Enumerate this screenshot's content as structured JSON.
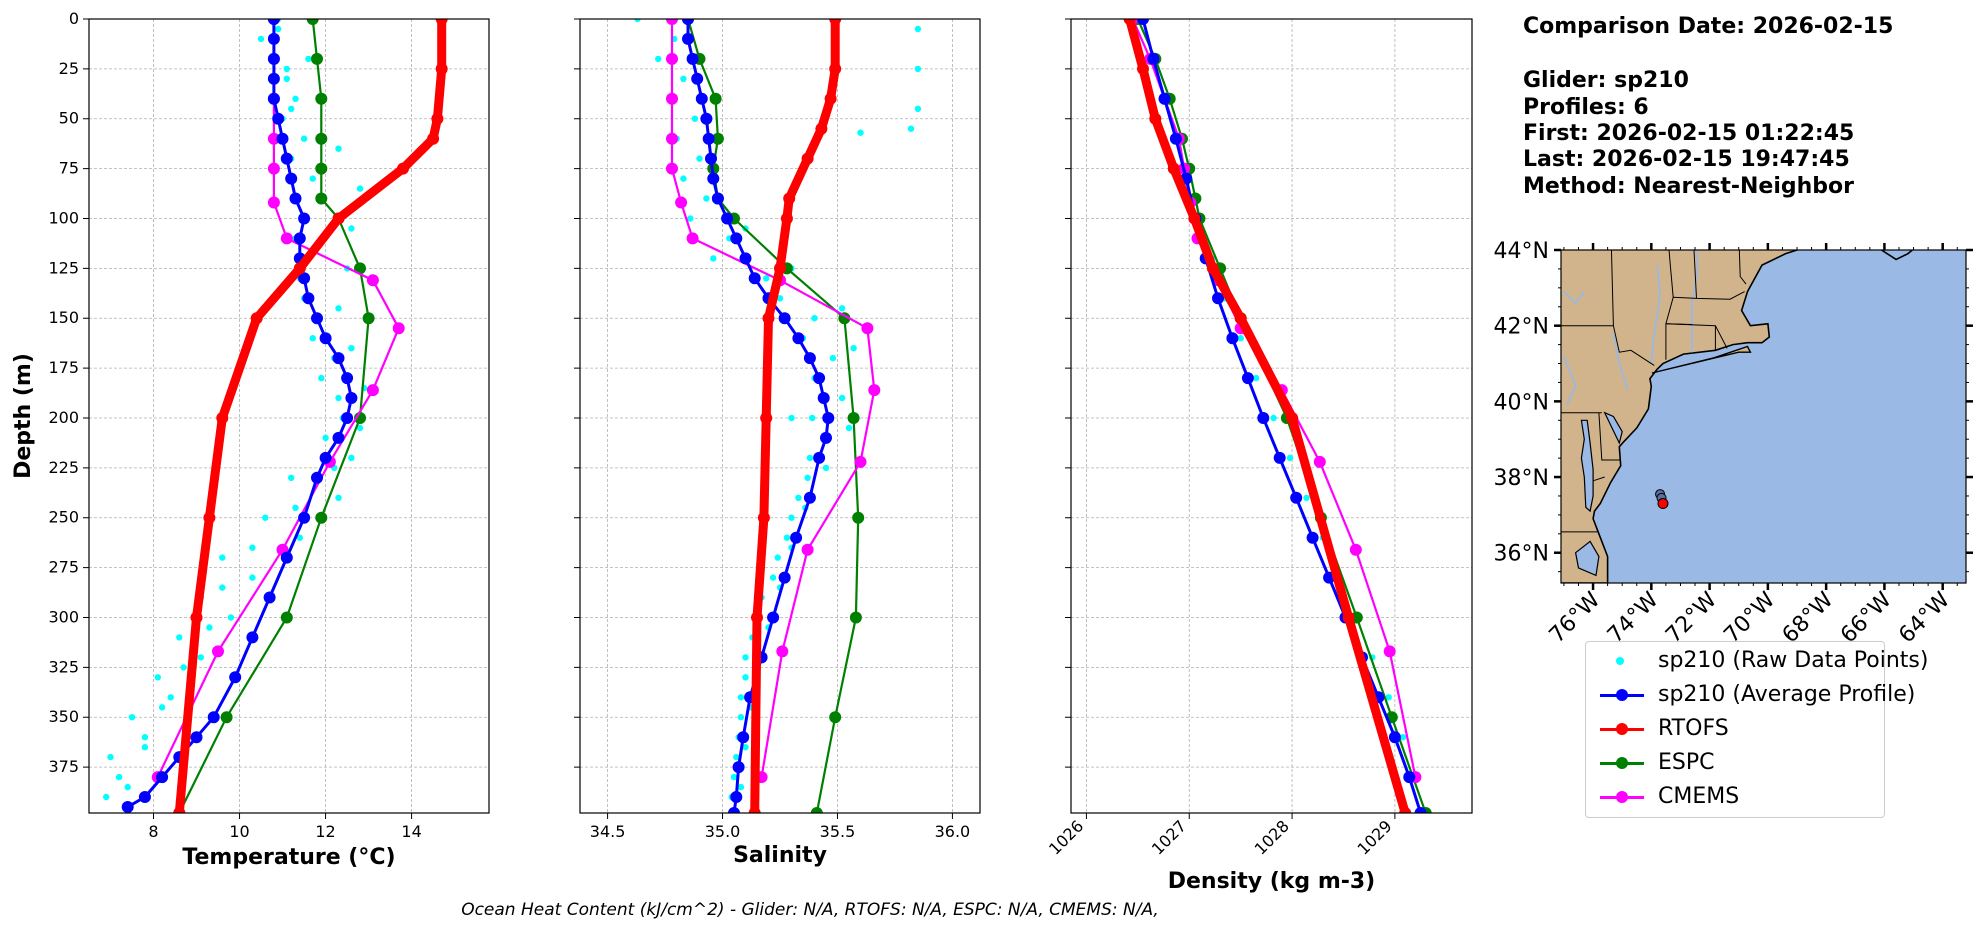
{
  "header": {
    "comparison_date": "Comparison Date: 2026-02-15",
    "glider": "Glider: sp210",
    "profiles": "Profiles: 6",
    "first": "First: 2026-02-15 01:22:45",
    "last": "Last: 2026-02-15 19:47:45",
    "method": "Method: Nearest-Neighbor"
  },
  "footer": "Ocean Heat Content (kJ/cm^2) - Glider: N/A,  RTOFS: N/A,  ESPC: N/A,  CMEMS: N/A,",
  "colors": {
    "raw": "#00ffff",
    "glider": "#0000ff",
    "rtofs": "#ff0000",
    "espc": "#008000",
    "cmems": "#ff00ff",
    "land": "#d2b48c",
    "ocean": "#9ab9e4"
  },
  "legend": [
    {
      "key": "raw",
      "label": "sp210 (Raw Data Points)"
    },
    {
      "key": "glider",
      "label": "sp210 (Average Profile)"
    },
    {
      "key": "rtofs",
      "label": "RTOFS"
    },
    {
      "key": "espc",
      "label": "ESPC"
    },
    {
      "key": "cmems",
      "label": "CMEMS"
    }
  ],
  "chart_data": [
    {
      "type": "line",
      "id": "temperature",
      "xlabel": "Temperature (°C)",
      "ylabel": "Depth (m)",
      "xlim": [
        6.5,
        15.8
      ],
      "ylim": [
        398,
        0
      ],
      "xticks": [
        8,
        10,
        12,
        14
      ],
      "yticks": [
        0,
        25,
        50,
        75,
        100,
        125,
        150,
        175,
        200,
        225,
        250,
        275,
        300,
        325,
        350,
        375
      ],
      "grid": true,
      "series": [
        {
          "name": "sp210 (Raw Data Points)",
          "key": "raw",
          "x": [
            10.9,
            11.6,
            11.3,
            11.5,
            11.7,
            11.5,
            11.6,
            11.5,
            11.7,
            11.9,
            12.4,
            12.6,
            12.3,
            11.4,
            10.3,
            9.8,
            9.1,
            8.4,
            7.8,
            7.2,
            10.5,
            11.1,
            11.0,
            11.2,
            11.3,
            11.3,
            11.4,
            11.8,
            12.2,
            12.3,
            12.0,
            11.2,
            10.6,
            9.6,
            9.1,
            8.6,
            8.1,
            7.5,
            7.0,
            6.9,
            10.9,
            11.1,
            11.2,
            12.3,
            12.8,
            12.6,
            12.5,
            12.3,
            12.6,
            12.9,
            12.8,
            12.2,
            11.3,
            10.3,
            9.6,
            9.3,
            8.7,
            8.2,
            7.8,
            7.4
          ],
          "y": [
            0,
            20,
            40,
            60,
            80,
            100,
            120,
            140,
            160,
            180,
            200,
            220,
            240,
            260,
            280,
            300,
            320,
            340,
            360,
            380,
            10,
            30,
            50,
            70,
            90,
            110,
            130,
            150,
            170,
            190,
            210,
            230,
            250,
            270,
            290,
            310,
            330,
            350,
            370,
            390,
            5,
            25,
            45,
            65,
            85,
            105,
            125,
            145,
            165,
            185,
            205,
            225,
            245,
            265,
            285,
            305,
            325,
            345,
            365,
            385
          ]
        },
        {
          "name": "sp210 (Average Profile)",
          "key": "glider",
          "x": [
            10.8,
            10.8,
            10.8,
            10.8,
            10.8,
            10.9,
            11.0,
            11.1,
            11.2,
            11.3,
            11.5,
            11.4,
            11.4,
            11.5,
            11.6,
            11.8,
            12.0,
            12.3,
            12.5,
            12.6,
            12.5,
            12.3,
            12.0,
            11.8,
            11.5,
            11.1,
            10.7,
            10.3,
            9.9,
            9.4,
            9.0,
            8.6,
            8.2,
            7.8,
            7.4
          ],
          "y": [
            0,
            10,
            20,
            30,
            40,
            50,
            60,
            70,
            80,
            90,
            100,
            110,
            120,
            130,
            140,
            150,
            160,
            170,
            180,
            190,
            200,
            210,
            220,
            230,
            250,
            270,
            290,
            310,
            330,
            350,
            360,
            370,
            380,
            390,
            395
          ]
        },
        {
          "name": "RTOFS",
          "key": "rtofs",
          "x": [
            14.7,
            14.7,
            14.6,
            14.5,
            13.8,
            12.3,
            11.4,
            10.4,
            9.6,
            9.3,
            9.0,
            8.6
          ],
          "y": [
            0,
            25,
            50,
            60,
            75,
            100,
            125,
            150,
            200,
            250,
            300,
            398
          ]
        },
        {
          "name": "ESPC",
          "key": "espc",
          "x": [
            11.7,
            11.8,
            11.9,
            11.9,
            11.9,
            11.9,
            12.3,
            12.8,
            13.0,
            12.8,
            11.9,
            11.1,
            9.7,
            8.6
          ],
          "y": [
            0,
            20,
            40,
            60,
            75,
            90,
            100,
            125,
            150,
            200,
            250,
            300,
            350,
            398
          ]
        },
        {
          "name": "CMEMS",
          "key": "cmems",
          "x": [
            10.8,
            10.8,
            10.8,
            10.8,
            10.8,
            10.8,
            11.1,
            13.1,
            13.7,
            13.1,
            12.1,
            11.0,
            9.5,
            8.1
          ],
          "y": [
            0,
            20,
            40,
            60,
            75,
            92,
            110,
            131,
            155,
            186,
            222,
            266,
            317,
            380
          ]
        }
      ]
    },
    {
      "type": "line",
      "id": "salinity",
      "xlabel": "Salinity",
      "xlim": [
        34.38,
        36.12
      ],
      "ylim": [
        398,
        0
      ],
      "xticks": [
        34.5,
        35.0,
        35.5,
        36.0
      ],
      "grid": true,
      "series": [
        {
          "name": "sp210 (Raw Data Points)",
          "key": "raw",
          "x": [
            34.63,
            34.72,
            34.78,
            34.8,
            34.83,
            34.86,
            34.96,
            35.25,
            35.35,
            35.4,
            35.39,
            35.38,
            35.33,
            35.28,
            35.22,
            35.15,
            35.1,
            35.08,
            35.07,
            35.05,
            34.79,
            34.83,
            34.88,
            34.9,
            34.93,
            35.03,
            35.19,
            35.4,
            35.48,
            35.52,
            35.46,
            35.37,
            35.3,
            35.24,
            35.17,
            35.13,
            35.1,
            35.08,
            35.06,
            35.04,
            35.85,
            35.85,
            35.85,
            35.82,
            35.6,
            35.1,
            35.3,
            35.52,
            35.57,
            35.3,
            35.55,
            35.45,
            35.36,
            35.3,
            35.25,
            35.2,
            35.15,
            35.12,
            35.1,
            35.08
          ],
          "y": [
            0,
            20,
            40,
            60,
            80,
            100,
            120,
            140,
            160,
            180,
            200,
            220,
            240,
            260,
            280,
            300,
            320,
            340,
            360,
            380,
            10,
            30,
            50,
            70,
            90,
            110,
            130,
            150,
            170,
            190,
            210,
            230,
            250,
            270,
            290,
            310,
            330,
            350,
            370,
            390,
            5,
            25,
            45,
            55,
            57,
            105,
            125,
            145,
            165,
            200,
            205,
            225,
            245,
            265,
            285,
            305,
            325,
            345,
            365,
            385
          ]
        },
        {
          "name": "sp210 (Average Profile)",
          "key": "glider",
          "x": [
            34.85,
            34.85,
            34.87,
            34.89,
            34.91,
            34.93,
            34.94,
            34.95,
            34.96,
            34.98,
            35.02,
            35.06,
            35.1,
            35.14,
            35.2,
            35.27,
            35.33,
            35.38,
            35.42,
            35.44,
            35.46,
            35.45,
            35.42,
            35.38,
            35.32,
            35.27,
            35.22,
            35.17,
            35.12,
            35.09,
            35.07,
            35.06,
            35.05
          ],
          "y": [
            0,
            10,
            20,
            30,
            40,
            50,
            60,
            70,
            80,
            90,
            100,
            110,
            120,
            130,
            140,
            150,
            160,
            170,
            180,
            190,
            200,
            210,
            220,
            240,
            260,
            280,
            300,
            320,
            340,
            360,
            375,
            390,
            398
          ]
        },
        {
          "name": "RTOFS",
          "key": "rtofs",
          "x": [
            35.49,
            35.49,
            35.47,
            35.43,
            35.37,
            35.29,
            35.28,
            35.25,
            35.2,
            35.19,
            35.18,
            35.15,
            35.14
          ],
          "y": [
            0,
            25,
            40,
            55,
            70,
            90,
            100,
            125,
            150,
            200,
            250,
            300,
            398
          ]
        },
        {
          "name": "ESPC",
          "key": "espc",
          "x": [
            34.85,
            34.9,
            34.97,
            34.98,
            34.96,
            34.98,
            35.05,
            35.28,
            35.53,
            35.57,
            35.59,
            35.58,
            35.49,
            35.41
          ],
          "y": [
            0,
            20,
            40,
            60,
            75,
            90,
            100,
            125,
            150,
            200,
            250,
            300,
            350,
            398
          ]
        },
        {
          "name": "CMEMS",
          "key": "cmems",
          "x": [
            34.78,
            34.78,
            34.78,
            34.78,
            34.78,
            34.82,
            34.87,
            35.25,
            35.63,
            35.66,
            35.6,
            35.37,
            35.26,
            35.17
          ],
          "y": [
            0,
            20,
            40,
            60,
            75,
            92,
            110,
            131,
            155,
            186,
            222,
            266,
            317,
            380
          ]
        }
      ]
    },
    {
      "type": "line",
      "id": "density",
      "xlabel": "Density (kg m-3)",
      "xlim": [
        1025.85,
        1029.75
      ],
      "ylim": [
        398,
        0
      ],
      "xticks": [
        1026,
        1027,
        1028,
        1029
      ],
      "grid": true,
      "series": [
        {
          "name": "sp210 (Raw Data Points)",
          "key": "raw",
          "x": [
            1026.45,
            1026.6,
            1026.75,
            1026.9,
            1027.0,
            1027.1,
            1027.22,
            1027.35,
            1027.5,
            1027.65,
            1027.82,
            1027.98,
            1028.14,
            1028.3,
            1028.46,
            1028.62,
            1028.78,
            1028.94,
            1029.08,
            1029.2
          ],
          "y": [
            0,
            20,
            40,
            60,
            80,
            100,
            120,
            140,
            160,
            180,
            200,
            220,
            240,
            260,
            280,
            300,
            320,
            340,
            360,
            380
          ]
        },
        {
          "name": "sp210 (Average Profile)",
          "key": "glider",
          "x": [
            1026.55,
            1026.65,
            1026.76,
            1026.87,
            1026.97,
            1027.06,
            1027.16,
            1027.28,
            1027.42,
            1027.57,
            1027.72,
            1027.88,
            1028.04,
            1028.2,
            1028.36,
            1028.52,
            1028.68,
            1028.84,
            1029.0,
            1029.14,
            1029.25
          ],
          "y": [
            0,
            20,
            40,
            60,
            80,
            100,
            120,
            140,
            160,
            180,
            200,
            220,
            240,
            260,
            280,
            300,
            320,
            340,
            360,
            380,
            398
          ]
        },
        {
          "name": "RTOFS",
          "key": "rtofs",
          "x": [
            1026.42,
            1026.55,
            1026.67,
            1026.85,
            1027.05,
            1027.23,
            1027.5,
            1028.0,
            1028.55,
            1029.1
          ],
          "y": [
            0,
            25,
            50,
            75,
            100,
            125,
            150,
            200,
            300,
            398
          ]
        },
        {
          "name": "ESPC",
          "key": "espc",
          "x": [
            1026.5,
            1026.67,
            1026.81,
            1026.93,
            1027.0,
            1027.06,
            1027.1,
            1027.3,
            1027.5,
            1027.95,
            1028.28,
            1028.63,
            1028.97,
            1029.3
          ],
          "y": [
            0,
            20,
            40,
            60,
            75,
            90,
            100,
            125,
            150,
            200,
            250,
            300,
            350,
            398
          ]
        },
        {
          "name": "CMEMS",
          "key": "cmems",
          "x": [
            1026.45,
            1026.62,
            1026.76,
            1026.9,
            1026.95,
            1027.01,
            1027.08,
            1027.28,
            1027.5,
            1027.9,
            1028.27,
            1028.62,
            1028.95,
            1029.2
          ],
          "y": [
            0,
            20,
            40,
            60,
            75,
            92,
            110,
            131,
            155,
            186,
            222,
            266,
            317,
            380
          ]
        }
      ]
    }
  ],
  "map": {
    "lat_ticks": [
      "44°N",
      "42°N",
      "40°N",
      "38°N",
      "36°N"
    ],
    "lon_ticks": [
      "76°W",
      "74°W",
      "72°W",
      "70°W",
      "68°W",
      "66°W",
      "64°W"
    ],
    "lat_range": [
      35.2,
      44.0
    ],
    "lon_range": [
      -77.1,
      -63.2
    ],
    "glider_positions": [
      {
        "lat": 37.55,
        "lon": -73.7
      },
      {
        "lat": 37.45,
        "lon": -73.65
      }
    ],
    "model_point": {
      "lat": 37.3,
      "lon": -73.6
    }
  }
}
